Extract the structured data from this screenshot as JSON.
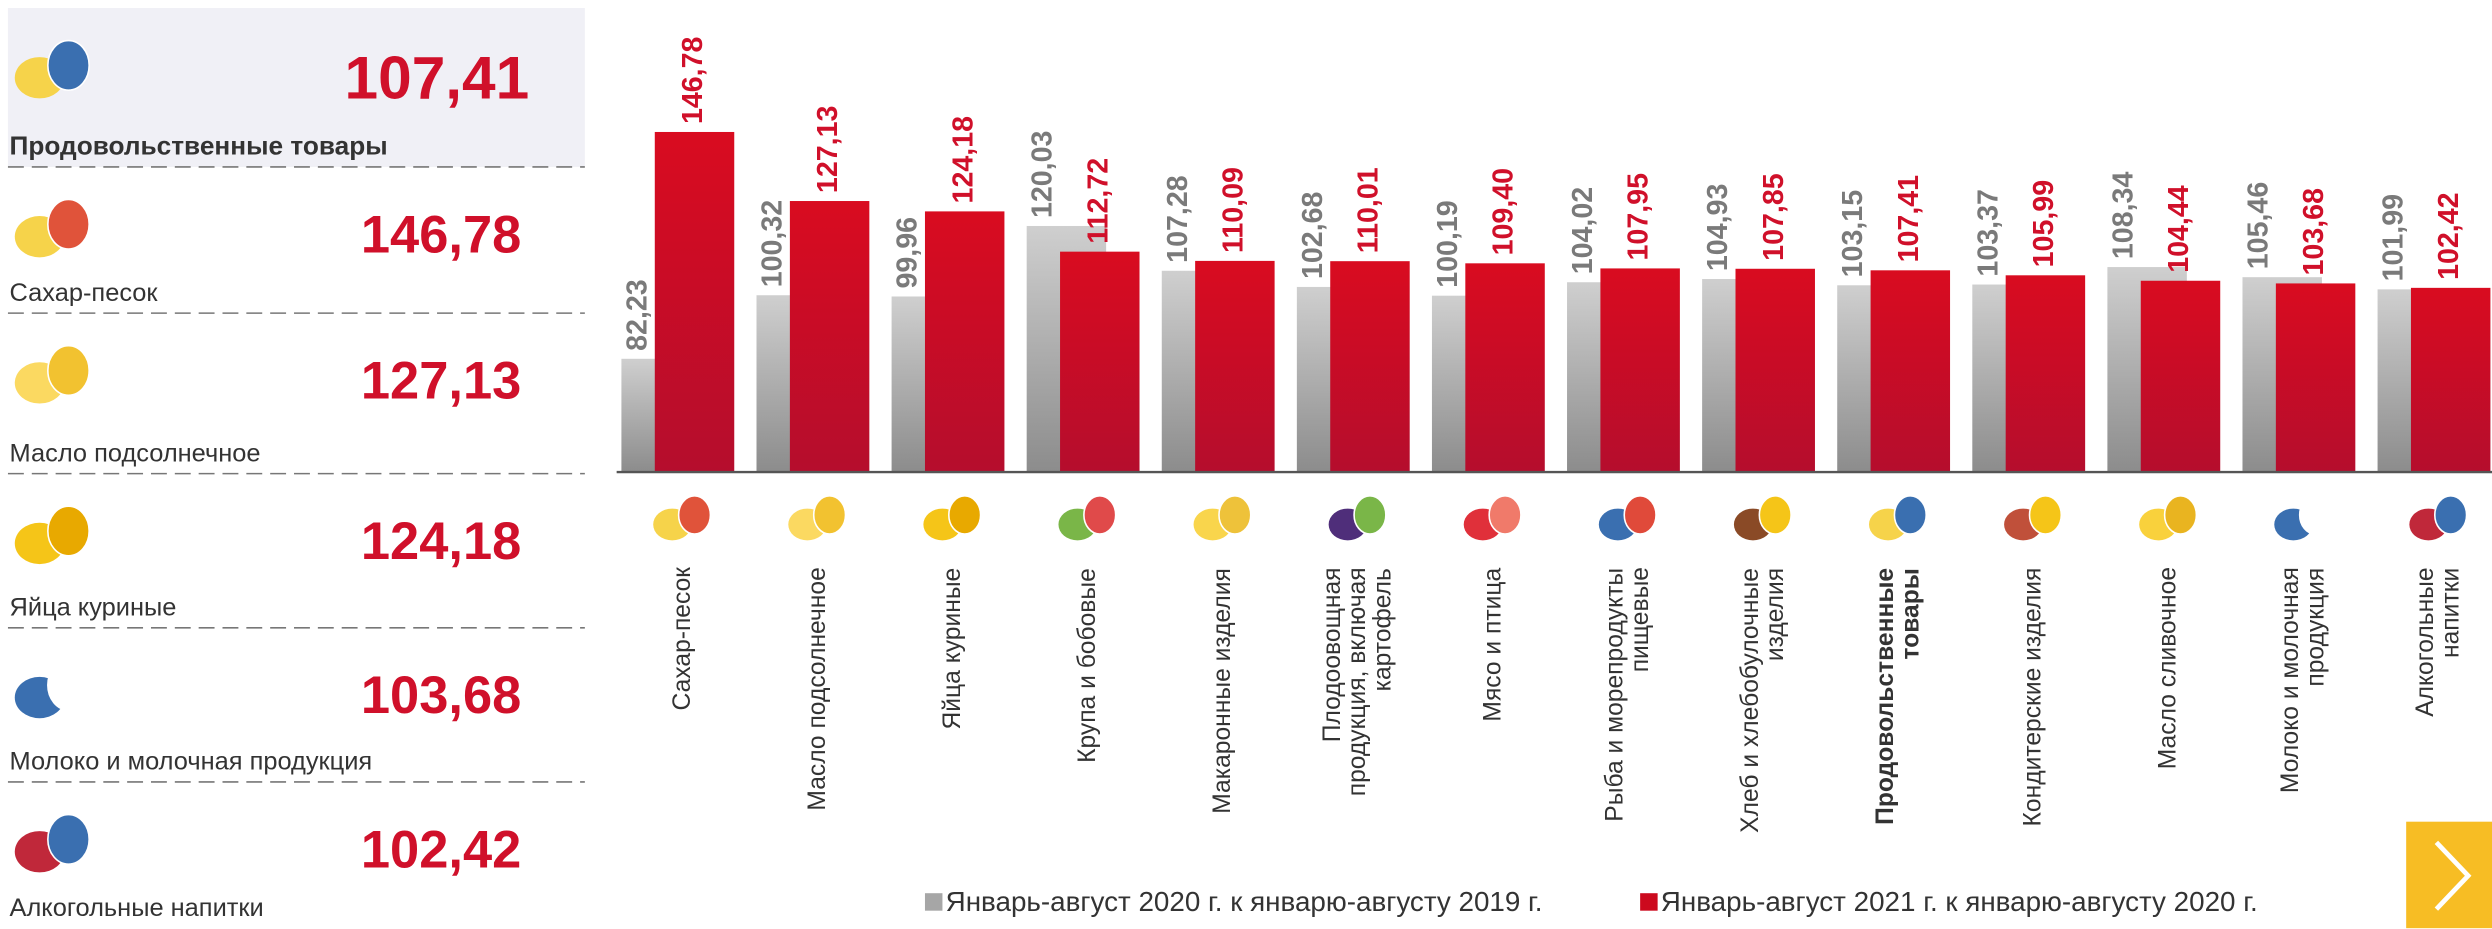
{
  "summary": {
    "items": [
      {
        "label": "Продовольственные товары",
        "value": "107,41"
      },
      {
        "label": "Сахар-песок",
        "value": "146,78"
      },
      {
        "label": "Масло подсолнечное",
        "value": "127,13"
      },
      {
        "label": "Яйца куриные",
        "value": "124,18"
      },
      {
        "label": "Молоко и молочная продукция",
        "value": "103,68"
      },
      {
        "label": "Алкогольные напитки",
        "value": "102,42"
      }
    ]
  },
  "chart_data": {
    "type": "bar",
    "categories": [
      "Сахар-песок",
      "Масло подсолнечное",
      "Яйца куриные",
      "Крупа и бобовые",
      "Макаронные изделия",
      "Плодоовощная\nпродукция, включая\nкартофель",
      "Мясо и птица",
      "Рыба и морепродукты\nпищевые",
      "Хлеб и хлебобулочные\nизделия",
      "Продовольственные\nтовары",
      "Кондитерские изделия",
      "Масло сливочное",
      "Молоко и молочная\nпродукция",
      "Алкогольные\nнапитки"
    ],
    "highlight_category": 9,
    "ylim": [
      50,
      150
    ],
    "series": [
      {
        "name": "Январь-август 2020 г. к январю-августу 2019 г.",
        "color": "#a6a6a6",
        "values": [
          82.23,
          100.32,
          99.96,
          120.03,
          107.28,
          102.68,
          100.19,
          104.02,
          104.93,
          103.15,
          103.37,
          108.34,
          105.46,
          101.99
        ],
        "value_labels": [
          "82,23",
          "100,32",
          "99,96",
          "120,03",
          "107,28",
          "102,68",
          "100,19",
          "104,02",
          "104,93",
          "103,15",
          "103,37",
          "108,34",
          "105,46",
          "101,99"
        ]
      },
      {
        "name": "Январь-август 2021 г. к январю-августу 2020 г.",
        "color": "#cc0a1e",
        "values": [
          146.78,
          127.13,
          124.18,
          112.72,
          110.09,
          110.01,
          109.4,
          107.95,
          107.85,
          107.41,
          105.99,
          104.44,
          103.68,
          102.42
        ],
        "value_labels": [
          "146,78",
          "127,13",
          "124,18",
          "112,72",
          "110,09",
          "110,01",
          "109,40",
          "107,95",
          "107,85",
          "107,41",
          "105,99",
          "104,44",
          "103,68",
          "102,42"
        ]
      }
    ]
  }
}
